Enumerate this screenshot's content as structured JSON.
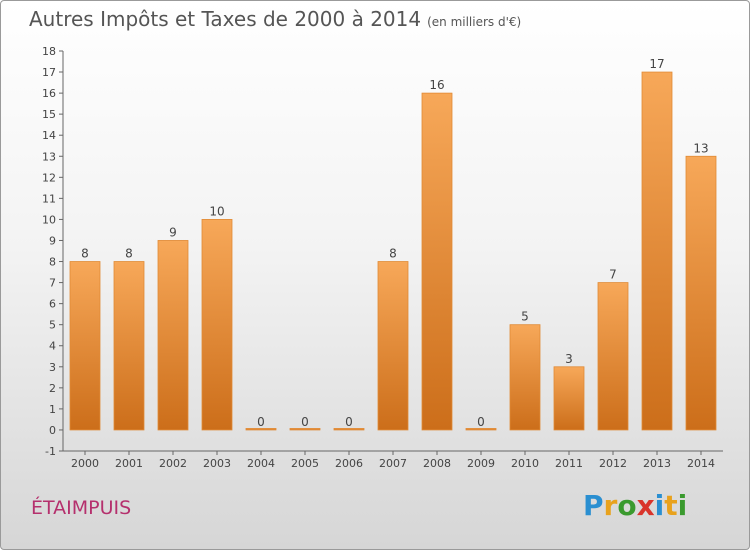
{
  "header": {
    "title": "Autres Impôts et Taxes de 2000 à 2014",
    "unit": "(en milliers d'€)"
  },
  "footer": {
    "commune": "ÉTAIMPUIS",
    "brand_letters": [
      "P",
      "r",
      "o",
      "x",
      "i",
      "t",
      "i"
    ],
    "brand_colors": [
      "#2a8fd1",
      "#e8a21d",
      "#3a9a2e",
      "#d9342b",
      "#2a8fd1",
      "#e8a21d",
      "#3a9a2e"
    ]
  },
  "colors": {
    "bar_top": "#f7a859",
    "bar_bottom": "#cc6e1a",
    "axis": "#666666",
    "grid": "#dddddd"
  },
  "chart_data": {
    "type": "bar",
    "title": "Autres Impôts et Taxes de 2000 à 2014",
    "subtitle": "(en milliers d'€)",
    "xlabel": "",
    "ylabel": "",
    "categories": [
      "2000",
      "2001",
      "2002",
      "2003",
      "2004",
      "2005",
      "2006",
      "2007",
      "2008",
      "2009",
      "2010",
      "2011",
      "2012",
      "2013",
      "2014"
    ],
    "values": [
      8,
      8,
      9,
      10,
      0,
      0,
      0,
      8,
      16,
      0,
      5,
      3,
      7,
      17,
      13
    ],
    "ylim": [
      -1,
      18
    ],
    "yticks": [
      "-1",
      "0",
      "1",
      "2",
      "3",
      "4",
      "5",
      "6",
      "7",
      "8",
      "9",
      "10",
      "11",
      "12",
      "13",
      "14",
      "15",
      "16",
      "17",
      "18"
    ],
    "grid": false,
    "legend": "none"
  }
}
